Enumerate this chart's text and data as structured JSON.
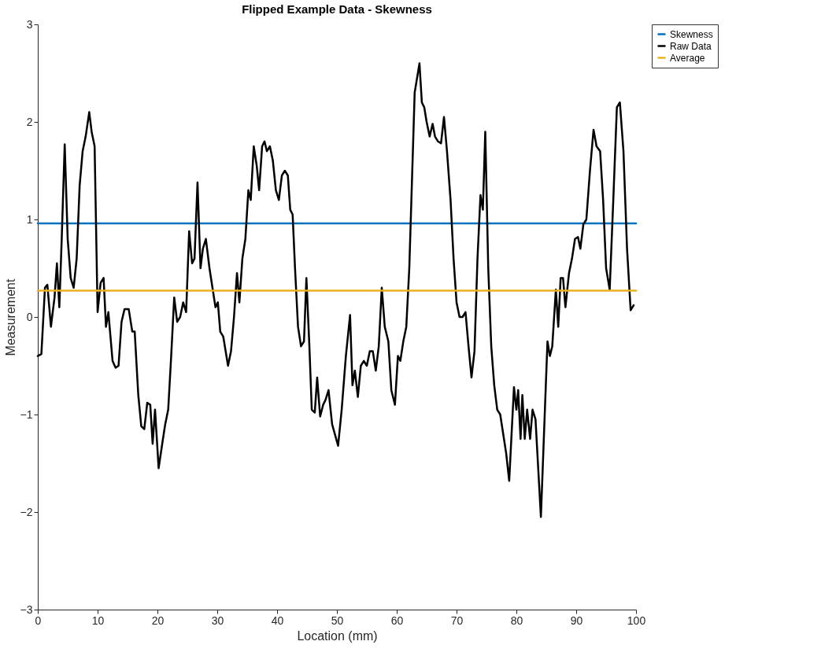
{
  "chart_data": {
    "type": "line",
    "title": "Flipped Example Data - Skewness",
    "xlabel": "Location (mm)",
    "ylabel": "Measurement",
    "xlim": [
      0,
      100
    ],
    "ylim": [
      -3,
      3
    ],
    "xticks": [
      0,
      10,
      20,
      30,
      40,
      50,
      60,
      70,
      80,
      90,
      100
    ],
    "yticks": [
      -3,
      -2,
      -1,
      0,
      1,
      2,
      3
    ],
    "grid": false,
    "legend": "right",
    "marker": "none",
    "line_style": "solid",
    "series": [
      {
        "name": "Skewness",
        "color": "#0072bd",
        "x": [
          0,
          100
        ],
        "values": [
          0.96,
          0.96
        ]
      },
      {
        "name": "Raw Data",
        "color": "#000000",
        "x": [
          0,
          0.6,
          1.2,
          1.6,
          2.2,
          2.8,
          3.2,
          3.6,
          4.0,
          4.5,
          5.0,
          5.5,
          6.0,
          6.5,
          7.0,
          7.5,
          8.0,
          8.6,
          9.0,
          9.5,
          10.0,
          10.5,
          11.0,
          11.4,
          11.8,
          12.5,
          13.0,
          13.5,
          14.0,
          14.5,
          15.2,
          15.8,
          16.2,
          16.8,
          17.3,
          17.8,
          18.3,
          18.8,
          19.2,
          19.6,
          20.2,
          20.8,
          21.3,
          21.8,
          22.3,
          22.8,
          23.3,
          23.8,
          24.3,
          24.8,
          25.3,
          25.8,
          26.2,
          26.7,
          27.2,
          27.6,
          28.1,
          28.7,
          29.2,
          29.7,
          30.1,
          30.5,
          31.0,
          31.8,
          32.3,
          32.8,
          33.3,
          33.7,
          34.2,
          34.7,
          35.2,
          35.6,
          36.1,
          36.6,
          37.0,
          37.5,
          37.9,
          38.3,
          38.8,
          39.3,
          39.8,
          40.3,
          40.8,
          41.3,
          41.8,
          42.2,
          42.6,
          43.0,
          43.5,
          44.0,
          44.5,
          44.9,
          45.4,
          45.8,
          46.3,
          46.7,
          47.2,
          47.7,
          48.1,
          48.6,
          49.2,
          50.2,
          50.8,
          51.5,
          52.2,
          52.6,
          53.0,
          53.5,
          54.0,
          54.5,
          55.0,
          55.5,
          56.0,
          56.5,
          57.0,
          57.5,
          58.0,
          58.6,
          59.1,
          59.7,
          60.2,
          60.6,
          61.1,
          61.6,
          62.1,
          62.6,
          63.0,
          63.8,
          64.2,
          64.6,
          65.0,
          65.5,
          66.0,
          66.4,
          66.9,
          67.4,
          67.9,
          68.4,
          69.0,
          69.5,
          70.0,
          70.5,
          71.0,
          71.5,
          72.0,
          72.5,
          73.0,
          73.5,
          74.0,
          74.4,
          74.8,
          75.3,
          75.8,
          76.3,
          76.8,
          77.3,
          77.8,
          78.3,
          78.8,
          79.2,
          79.6,
          80.0,
          80.3,
          80.7,
          81.0,
          81.4,
          81.8,
          82.3,
          82.7,
          83.2,
          84.1,
          84.8,
          85.2,
          85.6,
          86.0,
          86.6,
          87.0,
          87.4,
          87.8,
          88.2,
          88.8,
          89.3,
          89.8,
          90.3,
          90.7,
          91.2,
          91.7,
          92.3,
          92.9,
          93.4,
          94.0,
          94.5,
          95.0,
          95.6,
          96.2,
          96.8,
          97.3,
          97.9,
          98.5,
          99.1,
          99.6
        ],
        "values": [
          -0.4,
          -0.38,
          0.3,
          0.33,
          -0.1,
          0.2,
          0.55,
          0.1,
          0.8,
          1.77,
          0.8,
          0.4,
          0.3,
          0.6,
          1.35,
          1.7,
          1.85,
          2.1,
          1.9,
          1.75,
          0.05,
          0.35,
          0.4,
          -0.1,
          0.05,
          -0.45,
          -0.52,
          -0.5,
          -0.05,
          0.08,
          0.08,
          -0.15,
          -0.15,
          -0.8,
          -1.12,
          -1.15,
          -0.88,
          -0.9,
          -1.3,
          -0.95,
          -1.55,
          -1.3,
          -1.1,
          -0.95,
          -0.4,
          0.2,
          -0.05,
          0.0,
          0.15,
          0.05,
          0.88,
          0.55,
          0.6,
          1.38,
          0.5,
          0.7,
          0.8,
          0.5,
          0.3,
          0.1,
          0.15,
          -0.15,
          -0.2,
          -0.5,
          -0.35,
          0.0,
          0.45,
          0.15,
          0.6,
          0.8,
          1.3,
          1.2,
          1.75,
          1.55,
          1.3,
          1.75,
          1.8,
          1.7,
          1.75,
          1.6,
          1.3,
          1.2,
          1.45,
          1.5,
          1.45,
          1.1,
          1.05,
          0.5,
          -0.1,
          -0.3,
          -0.25,
          0.4,
          -0.3,
          -0.95,
          -0.98,
          -0.62,
          -1.02,
          -0.9,
          -0.85,
          -0.75,
          -1.1,
          -1.32,
          -0.95,
          -0.4,
          0.02,
          -0.7,
          -0.55,
          -0.82,
          -0.5,
          -0.45,
          -0.5,
          -0.35,
          -0.35,
          -0.55,
          -0.3,
          0.3,
          -0.1,
          -0.25,
          -0.75,
          -0.9,
          -0.4,
          -0.45,
          -0.25,
          -0.1,
          0.5,
          1.5,
          2.3,
          2.6,
          2.2,
          2.15,
          2.0,
          1.85,
          1.98,
          1.85,
          1.8,
          1.78,
          2.05,
          1.7,
          1.2,
          0.6,
          0.15,
          0.0,
          0.0,
          0.05,
          -0.3,
          -0.62,
          -0.35,
          0.6,
          1.25,
          1.1,
          1.9,
          0.5,
          -0.3,
          -0.7,
          -0.95,
          -1.0,
          -1.2,
          -1.4,
          -1.68,
          -1.2,
          -0.72,
          -0.95,
          -0.75,
          -1.25,
          -0.8,
          -1.25,
          -0.95,
          -1.25,
          -0.95,
          -1.05,
          -2.05,
          -0.9,
          -0.25,
          -0.4,
          -0.3,
          0.28,
          -0.1,
          0.4,
          0.4,
          0.1,
          0.45,
          0.6,
          0.8,
          0.82,
          0.7,
          0.95,
          1.0,
          1.5,
          1.92,
          1.75,
          1.7,
          1.2,
          0.5,
          0.28,
          1.2,
          2.15,
          2.2,
          1.7,
          0.7,
          0.07,
          0.12
        ]
      },
      {
        "name": "Average",
        "color": "#edb120",
        "x": [
          0,
          100
        ],
        "values": [
          0.27,
          0.27
        ]
      }
    ]
  }
}
